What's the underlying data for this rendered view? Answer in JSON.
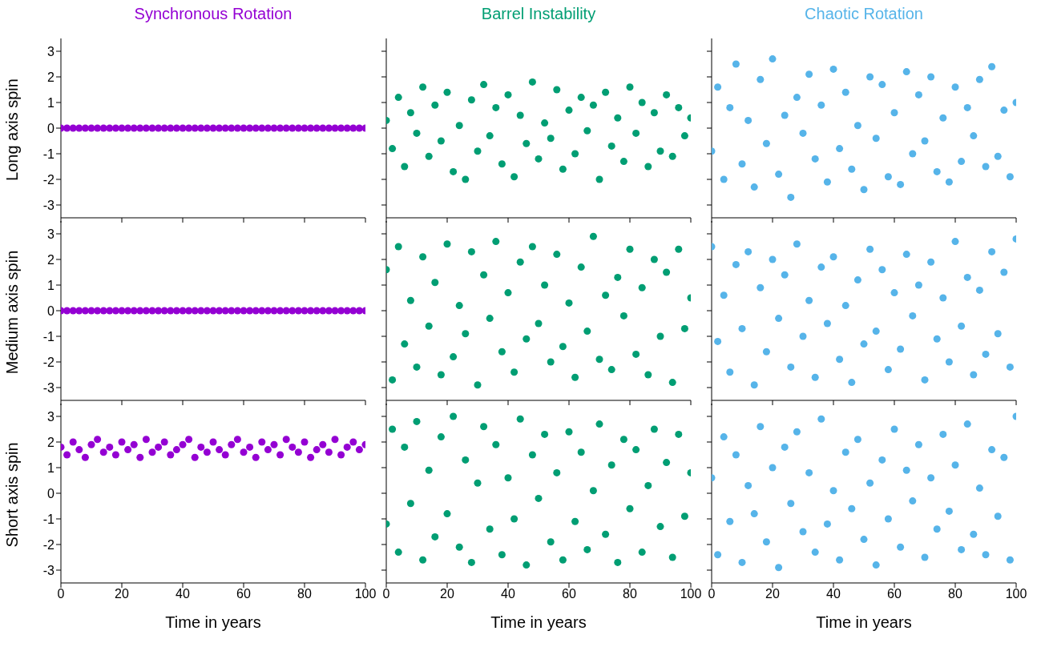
{
  "chart_data": [
    {
      "type": "scatter",
      "title": "Synchronous Rotation",
      "ylabel": "Long axis spin",
      "x": [
        0,
        2,
        4,
        6,
        8,
        10,
        12,
        14,
        16,
        18,
        20,
        22,
        24,
        26,
        28,
        30,
        32,
        34,
        36,
        38,
        40,
        42,
        44,
        46,
        48,
        50,
        52,
        54,
        56,
        58,
        60,
        62,
        64,
        66,
        68,
        70,
        72,
        74,
        76,
        78,
        80,
        82,
        84,
        86,
        88,
        90,
        92,
        94,
        96,
        98,
        100
      ],
      "series": [
        {
          "color": "#9400d3",
          "values": [
            0,
            0,
            0,
            0,
            0,
            0,
            0,
            0,
            0,
            0,
            0,
            0,
            0,
            0,
            0,
            0,
            0,
            0,
            0,
            0,
            0,
            0,
            0,
            0,
            0,
            0,
            0,
            0,
            0,
            0,
            0,
            0,
            0,
            0,
            0,
            0,
            0,
            0,
            0,
            0,
            0,
            0,
            0,
            0,
            0,
            0,
            0,
            0,
            0,
            0,
            0
          ]
        }
      ],
      "xlim": [
        0,
        100
      ],
      "ylim": [
        -3.5,
        3.5
      ],
      "xticks": [
        0,
        20,
        40,
        60,
        80,
        100
      ],
      "yticks": [
        -3,
        -2,
        -1,
        0,
        1,
        2,
        3
      ],
      "tick_labels": "y",
      "marker": "circle"
    },
    {
      "type": "scatter",
      "title": "Barrel Instability",
      "x": [
        0,
        2,
        4,
        6,
        8,
        10,
        12,
        14,
        16,
        18,
        20,
        22,
        24,
        26,
        28,
        30,
        32,
        34,
        36,
        38,
        40,
        42,
        44,
        46,
        48,
        50,
        52,
        54,
        56,
        58,
        60,
        62,
        64,
        66,
        68,
        70,
        72,
        74,
        76,
        78,
        80,
        82,
        84,
        86,
        88,
        90,
        92,
        94,
        96,
        98,
        100
      ],
      "series": [
        {
          "color": "#009e73",
          "values": [
            0.3,
            -0.8,
            1.2,
            -1.5,
            0.6,
            -0.2,
            1.6,
            -1.1,
            0.9,
            -0.5,
            1.4,
            -1.7,
            0.1,
            -2.0,
            1.1,
            -0.9,
            1.7,
            -0.3,
            0.8,
            -1.4,
            1.3,
            -1.9,
            0.5,
            -0.6,
            1.8,
            -1.2,
            0.2,
            -0.4,
            1.5,
            -1.6,
            0.7,
            -1.0,
            1.2,
            -0.1,
            0.9,
            -2.0,
            1.4,
            -0.7,
            0.4,
            -1.3,
            1.6,
            -0.2,
            1.0,
            -1.5,
            0.6,
            -0.9,
            1.3,
            -1.1,
            0.8,
            -0.3,
            0.4
          ]
        }
      ],
      "xlim": [
        0,
        100
      ],
      "ylim": [
        -3.5,
        3.5
      ],
      "xticks": [
        0,
        20,
        40,
        60,
        80,
        100
      ],
      "yticks": [
        -3,
        -2,
        -1,
        0,
        1,
        2,
        3
      ],
      "tick_labels": false,
      "marker": "circle"
    },
    {
      "type": "scatter",
      "title": "Chaotic Rotation",
      "x": [
        0,
        2,
        4,
        6,
        8,
        10,
        12,
        14,
        16,
        18,
        20,
        22,
        24,
        26,
        28,
        30,
        32,
        34,
        36,
        38,
        40,
        42,
        44,
        46,
        48,
        50,
        52,
        54,
        56,
        58,
        60,
        62,
        64,
        66,
        68,
        70,
        72,
        74,
        76,
        78,
        80,
        82,
        84,
        86,
        88,
        90,
        92,
        94,
        96,
        98,
        100
      ],
      "series": [
        {
          "color": "#56b4e9",
          "values": [
            -0.9,
            1.6,
            -2.0,
            0.8,
            2.5,
            -1.4,
            0.3,
            -2.3,
            1.9,
            -0.6,
            2.7,
            -1.8,
            0.5,
            -2.7,
            1.2,
            -0.2,
            2.1,
            -1.2,
            0.9,
            -2.1,
            2.3,
            -0.8,
            1.4,
            -1.6,
            0.1,
            -2.4,
            2.0,
            -0.4,
            1.7,
            -1.9,
            0.6,
            -2.2,
            2.2,
            -1.0,
            1.3,
            -0.5,
            2.0,
            -1.7,
            0.4,
            -2.1,
            1.6,
            -1.3,
            0.8,
            -0.3,
            1.9,
            -1.5,
            2.4,
            -1.1,
            0.7,
            -1.9,
            1.0
          ]
        }
      ],
      "xlim": [
        0,
        100
      ],
      "ylim": [
        -3.5,
        3.5
      ],
      "xticks": [
        0,
        20,
        40,
        60,
        80,
        100
      ],
      "yticks": [
        -3,
        -2,
        -1,
        0,
        1,
        2,
        3
      ],
      "tick_labels": false,
      "marker": "circle"
    },
    {
      "type": "scatter",
      "ylabel": "Medium axis spin",
      "x": [
        0,
        2,
        4,
        6,
        8,
        10,
        12,
        14,
        16,
        18,
        20,
        22,
        24,
        26,
        28,
        30,
        32,
        34,
        36,
        38,
        40,
        42,
        44,
        46,
        48,
        50,
        52,
        54,
        56,
        58,
        60,
        62,
        64,
        66,
        68,
        70,
        72,
        74,
        76,
        78,
        80,
        82,
        84,
        86,
        88,
        90,
        92,
        94,
        96,
        98,
        100
      ],
      "series": [
        {
          "color": "#9400d3",
          "values": [
            0,
            0,
            0,
            0,
            0,
            0,
            0,
            0,
            0,
            0,
            0,
            0,
            0,
            0,
            0,
            0,
            0,
            0,
            0,
            0,
            0,
            0,
            0,
            0,
            0,
            0,
            0,
            0,
            0,
            0,
            0,
            0,
            0,
            0,
            0,
            0,
            0,
            0,
            0,
            0,
            0,
            0,
            0,
            0,
            0,
            0,
            0,
            0,
            0,
            0,
            0
          ]
        }
      ],
      "xlim": [
        0,
        100
      ],
      "ylim": [
        -3.5,
        3.5
      ],
      "xticks": [
        0,
        20,
        40,
        60,
        80,
        100
      ],
      "yticks": [
        -3,
        -2,
        -1,
        0,
        1,
        2,
        3
      ],
      "tick_labels": "y",
      "marker": "circle"
    },
    {
      "type": "scatter",
      "x": [
        0,
        2,
        4,
        6,
        8,
        10,
        12,
        14,
        16,
        18,
        20,
        22,
        24,
        26,
        28,
        30,
        32,
        34,
        36,
        38,
        40,
        42,
        44,
        46,
        48,
        50,
        52,
        54,
        56,
        58,
        60,
        62,
        64,
        66,
        68,
        70,
        72,
        74,
        76,
        78,
        80,
        82,
        84,
        86,
        88,
        90,
        92,
        94,
        96,
        98,
        100
      ],
      "series": [
        {
          "color": "#009e73",
          "values": [
            1.6,
            -2.7,
            2.5,
            -1.3,
            0.4,
            -2.2,
            2.1,
            -0.6,
            1.1,
            -2.5,
            2.6,
            -1.8,
            0.2,
            -0.9,
            2.3,
            -2.9,
            1.4,
            -0.3,
            2.7,
            -1.6,
            0.7,
            -2.4,
            1.9,
            -1.1,
            2.5,
            -0.5,
            1.0,
            -2.0,
            2.2,
            -1.4,
            0.3,
            -2.6,
            1.7,
            -0.8,
            2.9,
            -1.9,
            0.6,
            -2.3,
            1.3,
            -0.2,
            2.4,
            -1.7,
            0.9,
            -2.5,
            2.0,
            -1.0,
            1.5,
            -2.8,
            2.4,
            -0.7,
            0.5
          ]
        }
      ],
      "xlim": [
        0,
        100
      ],
      "ylim": [
        -3.5,
        3.5
      ],
      "xticks": [
        0,
        20,
        40,
        60,
        80,
        100
      ],
      "yticks": [
        -3,
        -2,
        -1,
        0,
        1,
        2,
        3
      ],
      "tick_labels": false,
      "marker": "circle"
    },
    {
      "type": "scatter",
      "x": [
        0,
        2,
        4,
        6,
        8,
        10,
        12,
        14,
        16,
        18,
        20,
        22,
        24,
        26,
        28,
        30,
        32,
        34,
        36,
        38,
        40,
        42,
        44,
        46,
        48,
        50,
        52,
        54,
        56,
        58,
        60,
        62,
        64,
        66,
        68,
        70,
        72,
        74,
        76,
        78,
        80,
        82,
        84,
        86,
        88,
        90,
        92,
        94,
        96,
        98,
        100
      ],
      "series": [
        {
          "color": "#56b4e9",
          "values": [
            2.5,
            -1.2,
            0.6,
            -2.4,
            1.8,
            -0.7,
            2.3,
            -2.9,
            0.9,
            -1.6,
            2.0,
            -0.3,
            1.4,
            -2.2,
            2.6,
            -1.0,
            0.4,
            -2.6,
            1.7,
            -0.5,
            2.1,
            -1.9,
            0.2,
            -2.8,
            1.2,
            -1.3,
            2.4,
            -0.8,
            1.6,
            -2.3,
            0.7,
            -1.5,
            2.2,
            -0.2,
            1.0,
            -2.7,
            1.9,
            -1.1,
            0.5,
            -2.0,
            2.7,
            -0.6,
            1.3,
            -2.5,
            0.8,
            -1.7,
            2.3,
            -0.9,
            1.5,
            -2.2,
            2.8
          ]
        }
      ],
      "xlim": [
        0,
        100
      ],
      "ylim": [
        -3.5,
        3.5
      ],
      "xticks": [
        0,
        20,
        40,
        60,
        80,
        100
      ],
      "yticks": [
        -3,
        -2,
        -1,
        0,
        1,
        2,
        3
      ],
      "tick_labels": false,
      "marker": "circle"
    },
    {
      "type": "scatter",
      "ylabel": "Short axis spin",
      "xlabel": "Time in years",
      "x": [
        0,
        2,
        4,
        6,
        8,
        10,
        12,
        14,
        16,
        18,
        20,
        22,
        24,
        26,
        28,
        30,
        32,
        34,
        36,
        38,
        40,
        42,
        44,
        46,
        48,
        50,
        52,
        54,
        56,
        58,
        60,
        62,
        64,
        66,
        68,
        70,
        72,
        74,
        76,
        78,
        80,
        82,
        84,
        86,
        88,
        90,
        92,
        94,
        96,
        98,
        100
      ],
      "series": [
        {
          "color": "#9400d3",
          "values": [
            1.8,
            1.5,
            2.0,
            1.7,
            1.4,
            1.9,
            2.1,
            1.6,
            1.8,
            1.5,
            2.0,
            1.7,
            1.9,
            1.4,
            2.1,
            1.6,
            1.8,
            2.0,
            1.5,
            1.7,
            1.9,
            2.1,
            1.4,
            1.8,
            1.6,
            2.0,
            1.7,
            1.5,
            1.9,
            2.1,
            1.6,
            1.8,
            1.4,
            2.0,
            1.7,
            1.9,
            1.5,
            2.1,
            1.8,
            1.6,
            2.0,
            1.4,
            1.7,
            1.9,
            1.6,
            2.1,
            1.5,
            1.8,
            2.0,
            1.7,
            1.9
          ]
        }
      ],
      "xlim": [
        0,
        100
      ],
      "ylim": [
        -3.5,
        3.5
      ],
      "xticks": [
        0,
        20,
        40,
        60,
        80,
        100
      ],
      "yticks": [
        -3,
        -2,
        -1,
        0,
        1,
        2,
        3
      ],
      "marker": "circle"
    },
    {
      "type": "scatter",
      "xlabel": "Time in years",
      "x": [
        0,
        2,
        4,
        6,
        8,
        10,
        12,
        14,
        16,
        18,
        20,
        22,
        24,
        26,
        28,
        30,
        32,
        34,
        36,
        38,
        40,
        42,
        44,
        46,
        48,
        50,
        52,
        54,
        56,
        58,
        60,
        62,
        64,
        66,
        68,
        70,
        72,
        74,
        76,
        78,
        80,
        82,
        84,
        86,
        88,
        90,
        92,
        94,
        96,
        98,
        100
      ],
      "series": [
        {
          "color": "#009e73",
          "values": [
            -1.2,
            2.5,
            -2.3,
            1.8,
            -0.4,
            2.8,
            -2.6,
            0.9,
            -1.7,
            2.2,
            -0.8,
            3.0,
            -2.1,
            1.3,
            -2.7,
            0.4,
            2.6,
            -1.4,
            1.9,
            -2.4,
            0.6,
            -1.0,
            2.9,
            -2.8,
            1.5,
            -0.2,
            2.3,
            -1.9,
            0.8,
            -2.6,
            2.4,
            -1.1,
            1.6,
            -2.2,
            0.1,
            2.7,
            -1.6,
            1.1,
            -2.7,
            2.1,
            -0.6,
            1.7,
            -2.3,
            0.3,
            2.5,
            -1.3,
            1.2,
            -2.5,
            2.3,
            -0.9,
            0.8
          ]
        }
      ],
      "xlim": [
        0,
        100
      ],
      "ylim": [
        -3.5,
        3.5
      ],
      "xticks": [
        0,
        20,
        40,
        60,
        80,
        100
      ],
      "yticks": [
        -3,
        -2,
        -1,
        0,
        1,
        2,
        3
      ],
      "tick_labels": "x",
      "marker": "circle"
    },
    {
      "type": "scatter",
      "xlabel": "Time in years",
      "x": [
        0,
        2,
        4,
        6,
        8,
        10,
        12,
        14,
        16,
        18,
        20,
        22,
        24,
        26,
        28,
        30,
        32,
        34,
        36,
        38,
        40,
        42,
        44,
        46,
        48,
        50,
        52,
        54,
        56,
        58,
        60,
        62,
        64,
        66,
        68,
        70,
        72,
        74,
        76,
        78,
        80,
        82,
        84,
        86,
        88,
        90,
        92,
        94,
        96,
        98,
        100
      ],
      "series": [
        {
          "color": "#56b4e9",
          "values": [
            0.6,
            -2.4,
            2.2,
            -1.1,
            1.5,
            -2.7,
            0.3,
            -0.8,
            2.6,
            -1.9,
            1.0,
            -2.9,
            1.8,
            -0.4,
            2.4,
            -1.5,
            0.8,
            -2.3,
            2.9,
            -1.2,
            0.1,
            -2.6,
            1.6,
            -0.6,
            2.1,
            -1.8,
            0.4,
            -2.8,
            1.3,
            -1.0,
            2.5,
            -2.1,
            0.9,
            -0.3,
            1.9,
            -2.5,
            0.6,
            -1.4,
            2.3,
            -0.7,
            1.1,
            -2.2,
            2.7,
            -1.6,
            0.2,
            -2.4,
            1.7,
            -0.9,
            1.4,
            -2.6,
            3.0
          ]
        }
      ],
      "xlim": [
        0,
        100
      ],
      "ylim": [
        -3.5,
        3.5
      ],
      "xticks": [
        0,
        20,
        40,
        60,
        80,
        100
      ],
      "yticks": [
        -3,
        -2,
        -1,
        0,
        1,
        2,
        3
      ],
      "tick_labels": "x",
      "marker": "circle"
    }
  ]
}
